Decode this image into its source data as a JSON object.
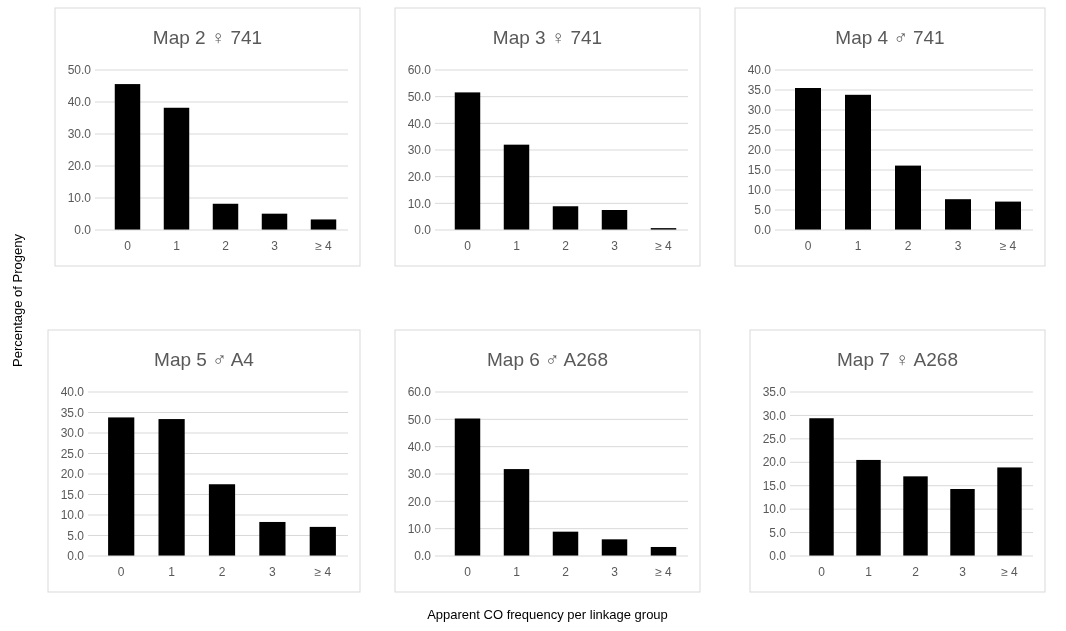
{
  "chart_data": [
    {
      "type": "bar",
      "title": "Map 2 ♀ 741",
      "ylabel": "Percentage of Progeny",
      "categories": [
        "0",
        "1",
        "2",
        "3",
        "≥ 4"
      ],
      "values": [
        45.6,
        38.2,
        8.2,
        5.1,
        3.3
      ],
      "color": "#000000",
      "ylim": [
        0,
        50
      ],
      "yticks": [
        {
          "value": 0,
          "label": "0.0"
        },
        {
          "value": 10,
          "label": "10.0"
        },
        {
          "value": 20,
          "label": "20.0"
        },
        {
          "value": 30,
          "label": "30.0"
        },
        {
          "value": 40,
          "label": "40.0"
        },
        {
          "value": 50,
          "label": "50.0"
        }
      ],
      "grid": "y"
    },
    {
      "type": "bar",
      "title": "Map 3 ♀ 741",
      "categories": [
        "0",
        "1",
        "2",
        "3",
        "≥ 4"
      ],
      "values": [
        51.6,
        32.0,
        8.9,
        7.5,
        0.7
      ],
      "color": "#000000",
      "ylim": [
        0,
        60
      ],
      "yticks": [
        {
          "value": 0,
          "label": "0.0"
        },
        {
          "value": 10,
          "label": "10.0"
        },
        {
          "value": 20,
          "label": "20.0"
        },
        {
          "value": 30,
          "label": "30.0"
        },
        {
          "value": 40,
          "label": "40.0"
        },
        {
          "value": 50,
          "label": "50.0"
        },
        {
          "value": 60,
          "label": "60.0"
        }
      ],
      "grid": "y"
    },
    {
      "type": "bar",
      "title": "Map 4 ♂ 741",
      "categories": [
        "0",
        "1",
        "2",
        "3",
        "≥ 4"
      ],
      "values": [
        35.5,
        33.8,
        16.1,
        7.7,
        7.1
      ],
      "color": "#000000",
      "ylim": [
        0,
        40
      ],
      "yticks": [
        {
          "value": 0,
          "label": "0.0"
        },
        {
          "value": 5,
          "label": "5.0"
        },
        {
          "value": 10,
          "label": "10.0"
        },
        {
          "value": 15,
          "label": "15.0"
        },
        {
          "value": 20,
          "label": "20.0"
        },
        {
          "value": 25,
          "label": "25.0"
        },
        {
          "value": 30,
          "label": "30.0"
        },
        {
          "value": 35,
          "label": "35.0"
        },
        {
          "value": 40,
          "label": "40.0"
        }
      ],
      "grid": "y"
    },
    {
      "type": "bar",
      "title": "Map 5 ♂ A4",
      "categories": [
        "0",
        "1",
        "2",
        "3",
        "≥ 4"
      ],
      "values": [
        33.8,
        33.4,
        17.5,
        8.3,
        7.1
      ],
      "color": "#000000",
      "ylim": [
        0,
        40
      ],
      "yticks": [
        {
          "value": 0,
          "label": "0.0"
        },
        {
          "value": 5,
          "label": "5.0"
        },
        {
          "value": 10,
          "label": "10.0"
        },
        {
          "value": 15,
          "label": "15.0"
        },
        {
          "value": 20,
          "label": "20.0"
        },
        {
          "value": 25,
          "label": "25.0"
        },
        {
          "value": 30,
          "label": "30.0"
        },
        {
          "value": 35,
          "label": "35.0"
        },
        {
          "value": 40,
          "label": "40.0"
        }
      ],
      "grid": "y"
    },
    {
      "type": "bar",
      "title": "Map 6 ♂ A268",
      "xlabel": "Apparent CO frequency per linkage group",
      "categories": [
        "0",
        "1",
        "2",
        "3",
        "≥ 4"
      ],
      "values": [
        50.3,
        31.8,
        8.9,
        6.1,
        3.3
      ],
      "color": "#000000",
      "ylim": [
        0,
        60
      ],
      "yticks": [
        {
          "value": 0,
          "label": "0.0"
        },
        {
          "value": 10,
          "label": "10.0"
        },
        {
          "value": 20,
          "label": "20.0"
        },
        {
          "value": 30,
          "label": "30.0"
        },
        {
          "value": 40,
          "label": "40.0"
        },
        {
          "value": 50,
          "label": "50.0"
        },
        {
          "value": 60,
          "label": "60.0"
        }
      ],
      "grid": "y"
    },
    {
      "type": "bar",
      "title": "Map 7 ♀ A268",
      "categories": [
        "0",
        "1",
        "2",
        "3",
        "≥ 4"
      ],
      "values": [
        29.4,
        20.5,
        17.0,
        14.3,
        18.9
      ],
      "color": "#000000",
      "ylim": [
        0,
        35
      ],
      "yticks": [
        {
          "value": 0,
          "label": "0.0"
        },
        {
          "value": 5,
          "label": "5.0"
        },
        {
          "value": 10,
          "label": "10.0"
        },
        {
          "value": 15,
          "label": "15.0"
        },
        {
          "value": 20,
          "label": "20.0"
        },
        {
          "value": 25,
          "label": "25.0"
        },
        {
          "value": 30,
          "label": "30.0"
        },
        {
          "value": 35,
          "label": "35.0"
        }
      ],
      "grid": "y"
    }
  ]
}
